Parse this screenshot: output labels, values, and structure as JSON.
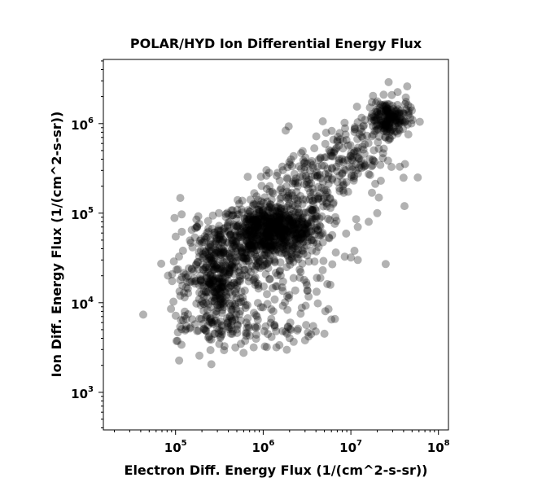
{
  "chart_data": {
    "type": "scatter",
    "title": "POLAR/HYD  Ion Differential Energy Flux",
    "xlabel": "Electron Diff. Energy Flux (1/(cm^2-s-sr))",
    "ylabel": "Ion Diff. Energy Flux (1/(cm^2-s-sr))",
    "xscale": "log",
    "yscale": "log",
    "xlim": [
      15000,
      130000000
    ],
    "ylim": [
      380,
      5200000
    ],
    "xticks": [
      {
        "value": 100000,
        "base": "10",
        "exp": "5"
      },
      {
        "value": 1000000,
        "base": "10",
        "exp": "6"
      },
      {
        "value": 10000000,
        "base": "10",
        "exp": "7"
      },
      {
        "value": 100000000,
        "base": "10",
        "exp": "8"
      }
    ],
    "yticks": [
      {
        "value": 1000,
        "base": "10",
        "exp": "3"
      },
      {
        "value": 10000,
        "base": "10",
        "exp": "4"
      },
      {
        "value": 100000,
        "base": "10",
        "exp": "5"
      },
      {
        "value": 1000000,
        "base": "10",
        "exp": "6"
      }
    ],
    "grid": false,
    "marker_color": "#000000",
    "marker_opacity": 0.3,
    "clusters": [
      {
        "x_center": 1300000,
        "y_center": 65000,
        "x_spread": 0.3,
        "y_spread": 0.15,
        "count": 700
      },
      {
        "x_center": 300000,
        "y_center": 18000,
        "x_spread": 0.15,
        "y_spread": 0.3,
        "count": 380
      },
      {
        "x_center": 1000000,
        "y_center": 35000,
        "x_spread": 0.25,
        "y_spread": 0.25,
        "count": 200
      },
      {
        "x_center": 27000000,
        "y_center": 1150000,
        "x_spread": 0.12,
        "y_spread": 0.1,
        "count": 200
      },
      {
        "x_center": 8000000,
        "y_center": 400000,
        "x_spread": 0.25,
        "y_spread": 0.2,
        "count": 160
      },
      {
        "x_center": 3000000,
        "y_center": 200000,
        "x_spread": 0.25,
        "y_spread": 0.2,
        "count": 120
      },
      {
        "x_center": 300000,
        "y_center": 5000,
        "x_spread": 0.25,
        "y_spread": 0.08,
        "count": 45
      },
      {
        "x_center": 1200000,
        "y_center": 5000,
        "x_spread": 0.3,
        "y_spread": 0.12,
        "count": 50
      },
      {
        "x_center": 130000,
        "y_center": 20000,
        "x_spread": 0.12,
        "y_spread": 0.35,
        "count": 45
      },
      {
        "x_center": 2200000,
        "y_center": 12000,
        "x_spread": 0.3,
        "y_spread": 0.25,
        "count": 35
      }
    ],
    "outliers": [
      {
        "x": 58000000,
        "y": 250000
      },
      {
        "x": 41000000,
        "y": 120000
      },
      {
        "x": 25000000,
        "y": 27000
      },
      {
        "x": 20000000,
        "y": 100000
      },
      {
        "x": 27000000,
        "y": 2900000
      },
      {
        "x": 44000000,
        "y": 2600000
      },
      {
        "x": 16000000,
        "y": 80000
      },
      {
        "x": 22000000,
        "y": 230000
      },
      {
        "x": 10000000,
        "y": 32000
      },
      {
        "x": 11000000,
        "y": 38000
      },
      {
        "x": 12000000,
        "y": 30000
      },
      {
        "x": 12000000,
        "y": 70000
      },
      {
        "x": 5000000,
        "y": 4500
      },
      {
        "x": 3300000,
        "y": 4200
      },
      {
        "x": 3000000,
        "y": 3800
      },
      {
        "x": 6000000,
        "y": 6500
      },
      {
        "x": 1100000,
        "y": 3200
      }
    ]
  }
}
